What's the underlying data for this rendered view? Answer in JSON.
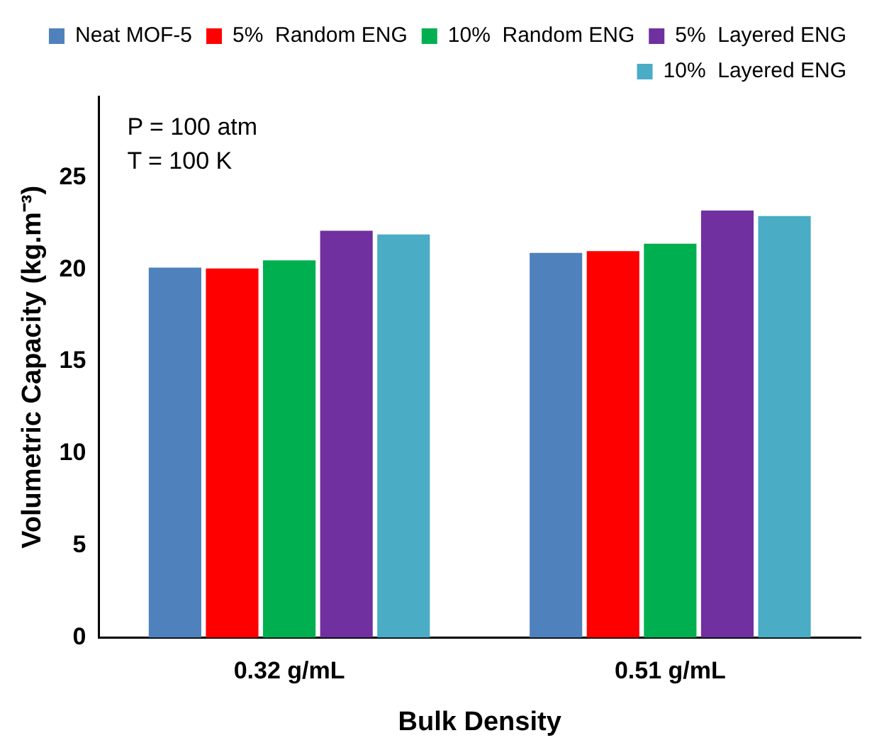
{
  "chart_data": {
    "type": "bar",
    "xlabel": "Bulk Density",
    "ylabel": "Volumetric Capacity (kg.m⁻³)",
    "categories": [
      "0.32 g/mL",
      "0.51 g/mL"
    ],
    "series": [
      {
        "name": "Neat MOF-5",
        "color": "#4f81bd",
        "values": [
          20.1,
          20.9
        ]
      },
      {
        "name": "5%  Random ENG",
        "color": "#ff0000",
        "values": [
          20.05,
          21.0
        ]
      },
      {
        "name": "10%  Random ENG",
        "color": "#00b050",
        "values": [
          20.5,
          21.4
        ]
      },
      {
        "name": "5%  Layered ENG",
        "color": "#7030a0",
        "values": [
          22.1,
          23.2
        ]
      },
      {
        "name": "10%  Layered ENG",
        "color": "#4bacc6",
        "values": [
          21.9,
          22.9
        ]
      }
    ],
    "ylim": [
      0,
      29.4
    ],
    "yticks": [
      0,
      5,
      10,
      15,
      20,
      25
    ],
    "grid": false,
    "legend": "top right",
    "annotations": [
      "P = 100 atm",
      "T = 100 K"
    ]
  }
}
